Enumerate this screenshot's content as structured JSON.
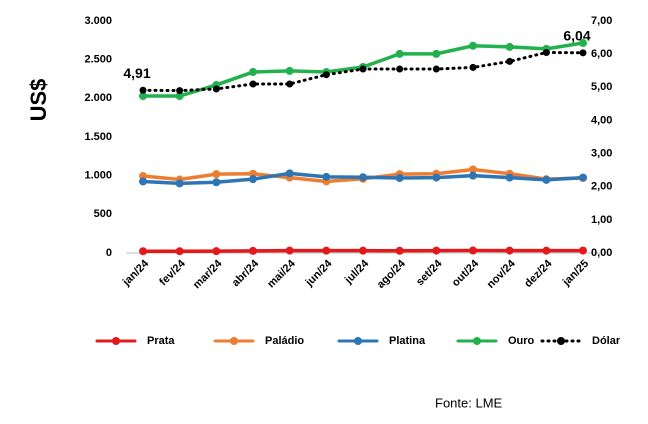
{
  "chart_data": {
    "type": "line",
    "y_axis_label": "US$",
    "source": "Fonte: LME",
    "categories": [
      "jan/24",
      "fev/24",
      "mar/24",
      "abr/24",
      "mai/24",
      "jun/24",
      "jul/24",
      "ago/24",
      "set/24",
      "out/24",
      "nov/24",
      "dez/24",
      "jan/25"
    ],
    "ylim": [
      0,
      3000
    ],
    "yticks": [
      {
        "value": 0,
        "label": "0"
      },
      {
        "value": 500,
        "label": "500"
      },
      {
        "value": 1000,
        "label": "1.000"
      },
      {
        "value": 1500,
        "label": "1.500"
      },
      {
        "value": 2000,
        "label": "2.000"
      },
      {
        "value": 2500,
        "label": "2.500"
      },
      {
        "value": 3000,
        "label": "3.000"
      }
    ],
    "y2lim": [
      0,
      7
    ],
    "y2ticks": [
      {
        "value": 0,
        "label": "0,00"
      },
      {
        "value": 1,
        "label": "1,00"
      },
      {
        "value": 2,
        "label": "2,00"
      },
      {
        "value": 3,
        "label": "3,00"
      },
      {
        "value": 4,
        "label": "4,00"
      },
      {
        "value": 5,
        "label": "5,00"
      },
      {
        "value": 6,
        "label": "6,00"
      },
      {
        "value": 7,
        "label": "7,00"
      }
    ],
    "grid": false,
    "legend": "bottom",
    "series": [
      {
        "name": "Prata",
        "color": "#e31a1c",
        "values": [
          23,
          23,
          24,
          27,
          31,
          30,
          30,
          29,
          31,
          32,
          31,
          30,
          31
        ]
      },
      {
        "name": "Paládio",
        "color": "#ed7d31",
        "values": [
          995,
          950,
          1020,
          1025,
          975,
          925,
          960,
          1020,
          1025,
          1080,
          1025,
          955,
          970
        ]
      },
      {
        "name": "Platina",
        "color": "#2e75b6",
        "values": [
          925,
          900,
          915,
          955,
          1030,
          985,
          980,
          970,
          975,
          1000,
          975,
          945,
          975
        ]
      },
      {
        "name": "Ouro",
        "color": "#22b14c",
        "values": [
          2030,
          2030,
          2173,
          2340,
          2355,
          2340,
          2405,
          2575,
          2575,
          2680,
          2665,
          2640,
          2715
        ]
      },
      {
        "name": "Dólar",
        "color": "#000000",
        "axis": "y2",
        "dashed": true,
        "values": [
          4.91,
          4.9,
          4.95,
          5.1,
          5.1,
          5.38,
          5.55,
          5.55,
          5.55,
          5.6,
          5.78,
          6.05,
          6.04
        ],
        "value_labels": [
          "4,91",
          null,
          null,
          null,
          null,
          null,
          null,
          null,
          null,
          null,
          null,
          null,
          "6,04"
        ]
      }
    ]
  }
}
